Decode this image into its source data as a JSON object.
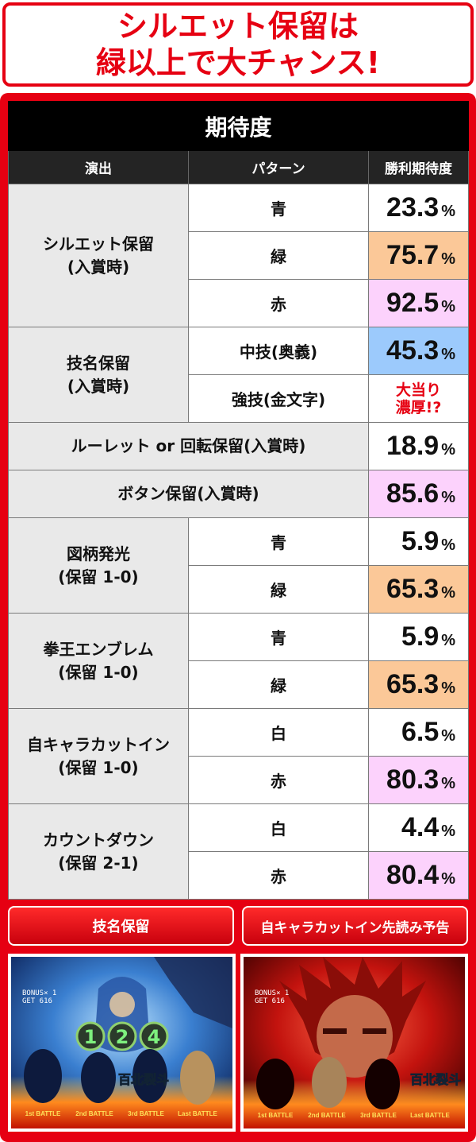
{
  "banner": {
    "line1": "シルエット保留は",
    "line2": "緑以上で大チャンス!"
  },
  "table": {
    "title": "期待度",
    "headers": [
      "演出",
      "パターン",
      "勝利期待度"
    ],
    "unit": "%",
    "sections": [
      {
        "category_line1": "シルエット保留",
        "category_line2": "(入賞時)",
        "rows": [
          {
            "pattern": "青",
            "value": "23.3",
            "highlight": "none"
          },
          {
            "pattern": "緑",
            "value": "75.7",
            "highlight": "orange"
          },
          {
            "pattern": "赤",
            "value": "92.5",
            "highlight": "pink"
          }
        ]
      },
      {
        "category_line1": "技名保留",
        "category_line2": "(入賞時)",
        "rows": [
          {
            "pattern": "中技(奥義)",
            "value": "45.3",
            "highlight": "blue"
          },
          {
            "pattern": "強技(金文字)",
            "note_line1": "大当り",
            "note_line2": "濃厚!?"
          }
        ]
      },
      {
        "single": "ルーレット or 回転保留(入賞時)",
        "value": "18.9",
        "highlight": "none"
      },
      {
        "single": "ボタン保留(入賞時)",
        "value": "85.6",
        "highlight": "pink"
      },
      {
        "category_line1": "図柄発光",
        "category_line2": "(保留 1-0)",
        "rows": [
          {
            "pattern": "青",
            "value": "5.9",
            "highlight": "none"
          },
          {
            "pattern": "緑",
            "value": "65.3",
            "highlight": "orange"
          }
        ]
      },
      {
        "category_line1": "拳王エンブレム",
        "category_line2": "(保留 1-0)",
        "rows": [
          {
            "pattern": "青",
            "value": "5.9",
            "highlight": "none"
          },
          {
            "pattern": "緑",
            "value": "65.3",
            "highlight": "orange"
          }
        ]
      },
      {
        "category_line1": "自キャラカットイン",
        "category_line2": "(保留 1-0)",
        "rows": [
          {
            "pattern": "白",
            "value": "6.5",
            "highlight": "none"
          },
          {
            "pattern": "赤",
            "value": "80.3",
            "highlight": "pink"
          }
        ]
      },
      {
        "category_line1": "カウントダウン",
        "category_line2": "(保留 2-1)",
        "rows": [
          {
            "pattern": "白",
            "value": "4.4",
            "highlight": "none"
          },
          {
            "pattern": "赤",
            "value": "80.4",
            "highlight": "pink"
          }
        ]
      }
    ]
  },
  "screenshots": {
    "left": {
      "label": "技名保留",
      "bonus_text": "BONUS× 1",
      "get_text": "GET  616",
      "digits": [
        "1",
        "2",
        "4"
      ],
      "emblem_text": "百北裂斗",
      "battles": [
        "1st BATTLE",
        "2nd BATTLE",
        "3rd BATTLE",
        "Last BATTLE"
      ]
    },
    "right": {
      "label": "自キャラカットイン先読み予告",
      "bonus_text": "BONUS× 1",
      "get_text": "GET  616",
      "emblem_text": "百北裂斗",
      "battles": [
        "1st BATTLE",
        "2nd BATTLE",
        "3rd BATTLE",
        "Last BATTLE"
      ]
    }
  },
  "colors": {
    "accent_red": "#e60012",
    "highlight_orange": "#fbc898",
    "highlight_pink": "#fcd2fc",
    "highlight_blue": "#9ccafc"
  }
}
